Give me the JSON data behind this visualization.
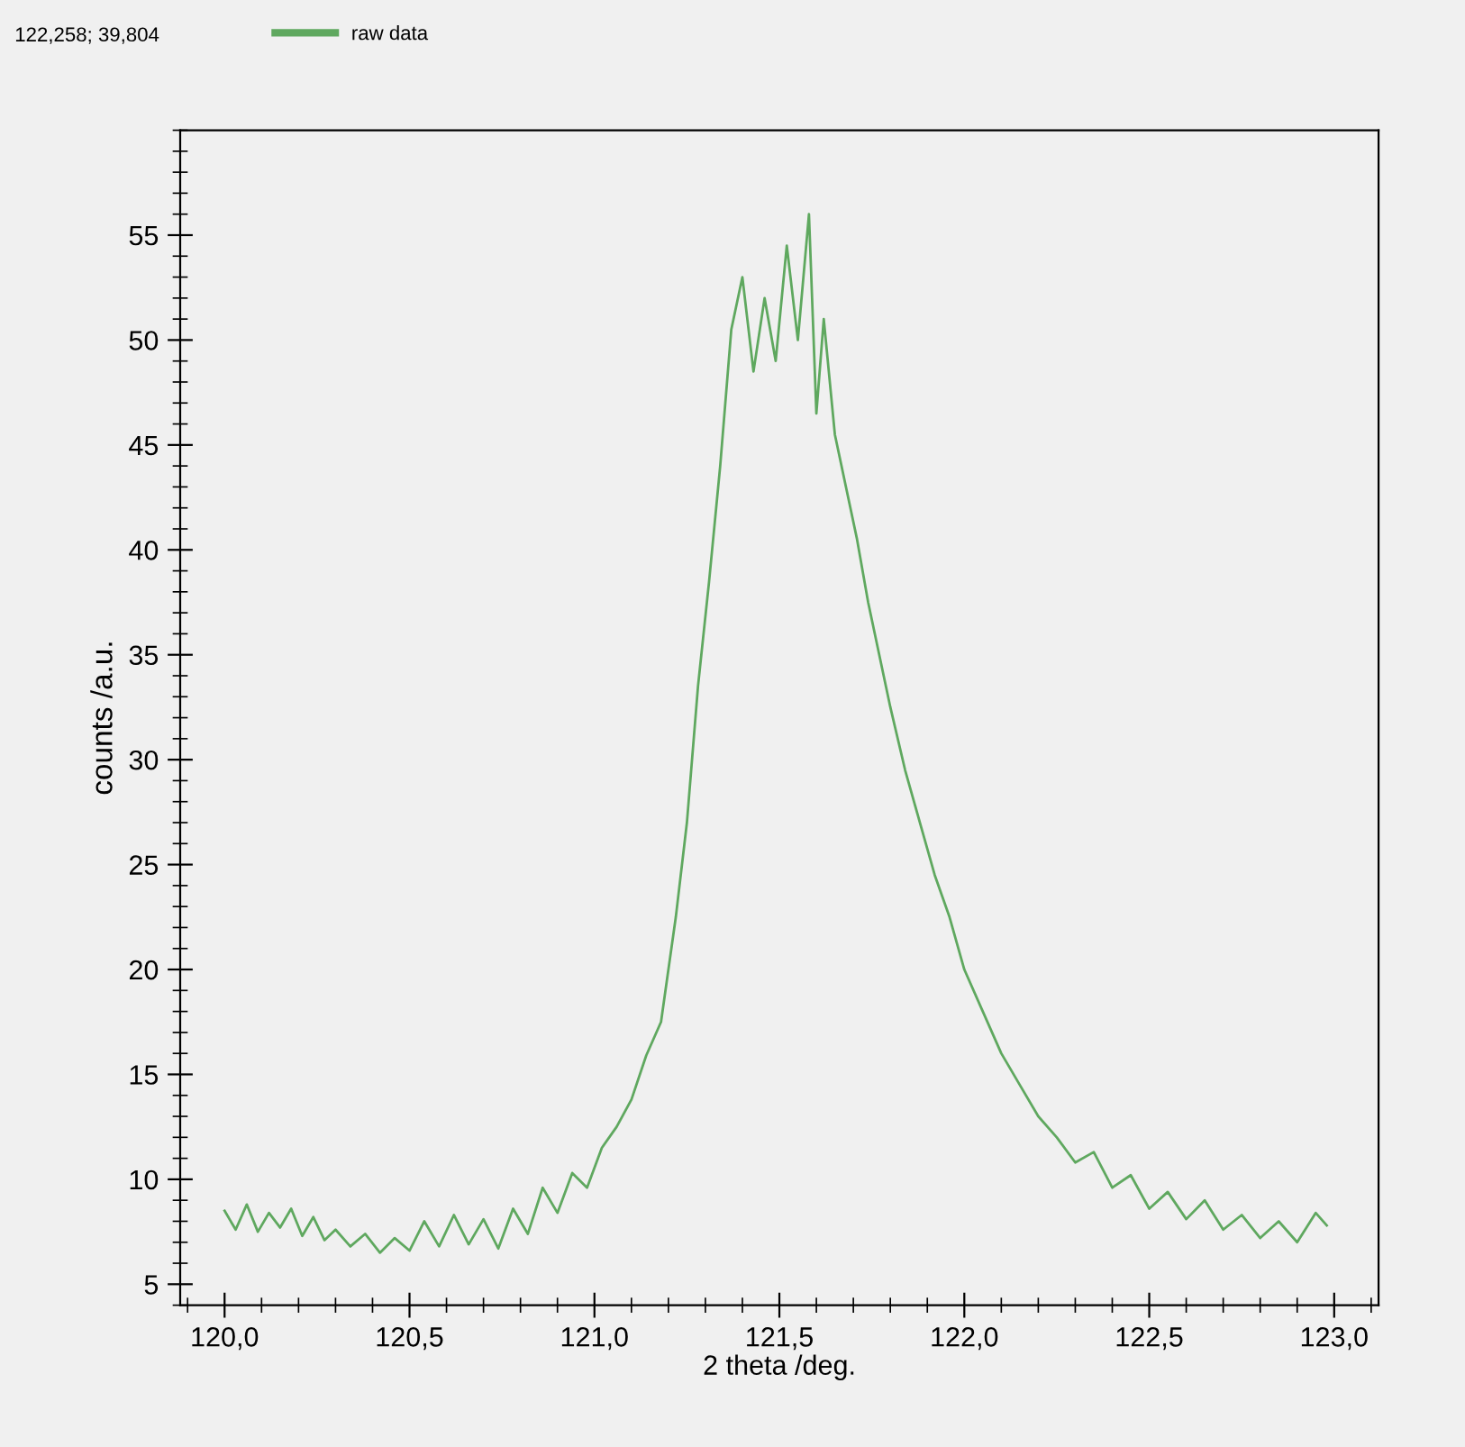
{
  "chart_data": {
    "type": "line",
    "xlabel": "2 theta /deg.",
    "ylabel": "counts /a.u.",
    "annotations": [
      "122,258; 39,804"
    ],
    "legend": "top",
    "series": [
      {
        "name": "raw data",
        "color": "#5fa85f",
        "x": [
          120.0,
          120.03,
          120.06,
          120.09,
          120.12,
          120.15,
          120.18,
          120.21,
          120.24,
          120.27,
          120.3,
          120.34,
          120.38,
          120.42,
          120.46,
          120.5,
          120.54,
          120.58,
          120.62,
          120.66,
          120.7,
          120.74,
          120.78,
          120.82,
          120.86,
          120.9,
          120.94,
          120.98,
          121.02,
          121.06,
          121.1,
          121.14,
          121.18,
          121.22,
          121.25,
          121.28,
          121.31,
          121.34,
          121.37,
          121.4,
          121.43,
          121.46,
          121.49,
          121.52,
          121.55,
          121.58,
          121.6,
          121.62,
          121.65,
          121.68,
          121.71,
          121.74,
          121.77,
          121.8,
          121.84,
          121.88,
          121.92,
          121.96,
          122.0,
          122.05,
          122.1,
          122.15,
          122.2,
          122.25,
          122.3,
          122.35,
          122.4,
          122.45,
          122.5,
          122.55,
          122.6,
          122.65,
          122.7,
          122.75,
          122.8,
          122.85,
          122.9,
          122.95,
          122.98
        ],
        "values": [
          8.5,
          7.6,
          8.8,
          7.5,
          8.4,
          7.7,
          8.6,
          7.3,
          8.2,
          7.1,
          7.6,
          6.8,
          7.4,
          6.5,
          7.2,
          6.6,
          8.0,
          6.8,
          8.3,
          6.9,
          8.1,
          6.7,
          8.6,
          7.4,
          9.6,
          8.4,
          10.3,
          9.6,
          11.5,
          12.5,
          13.8,
          15.9,
          17.5,
          22.5,
          27.0,
          33.5,
          38.5,
          44.0,
          50.5,
          53.0,
          48.5,
          52.0,
          49.0,
          54.5,
          50.0,
          56.0,
          46.5,
          51.0,
          45.5,
          43.0,
          40.5,
          37.5,
          35.0,
          32.5,
          29.5,
          27.0,
          24.5,
          22.5,
          20.0,
          18.0,
          16.0,
          14.5,
          13.0,
          12.0,
          10.8,
          11.3,
          9.6,
          10.2,
          8.6,
          9.4,
          8.1,
          9.0,
          7.6,
          8.3,
          7.2,
          8.0,
          7.0,
          8.4,
          7.8
        ]
      }
    ],
    "xlim": [
      119.88,
      123.12
    ],
    "ylim": [
      4,
      60
    ],
    "xticks": [
      {
        "value": 120.0,
        "label": "120,0"
      },
      {
        "value": 120.5,
        "label": "120,5"
      },
      {
        "value": 121.0,
        "label": "121,0"
      },
      {
        "value": 121.5,
        "label": "121,5"
      },
      {
        "value": 122.0,
        "label": "122,0"
      },
      {
        "value": 122.5,
        "label": "122,5"
      },
      {
        "value": 123.0,
        "label": "123,0"
      }
    ],
    "yticks": [
      5,
      10,
      15,
      20,
      25,
      30,
      35,
      40,
      45,
      50,
      55
    ],
    "grid": false
  }
}
